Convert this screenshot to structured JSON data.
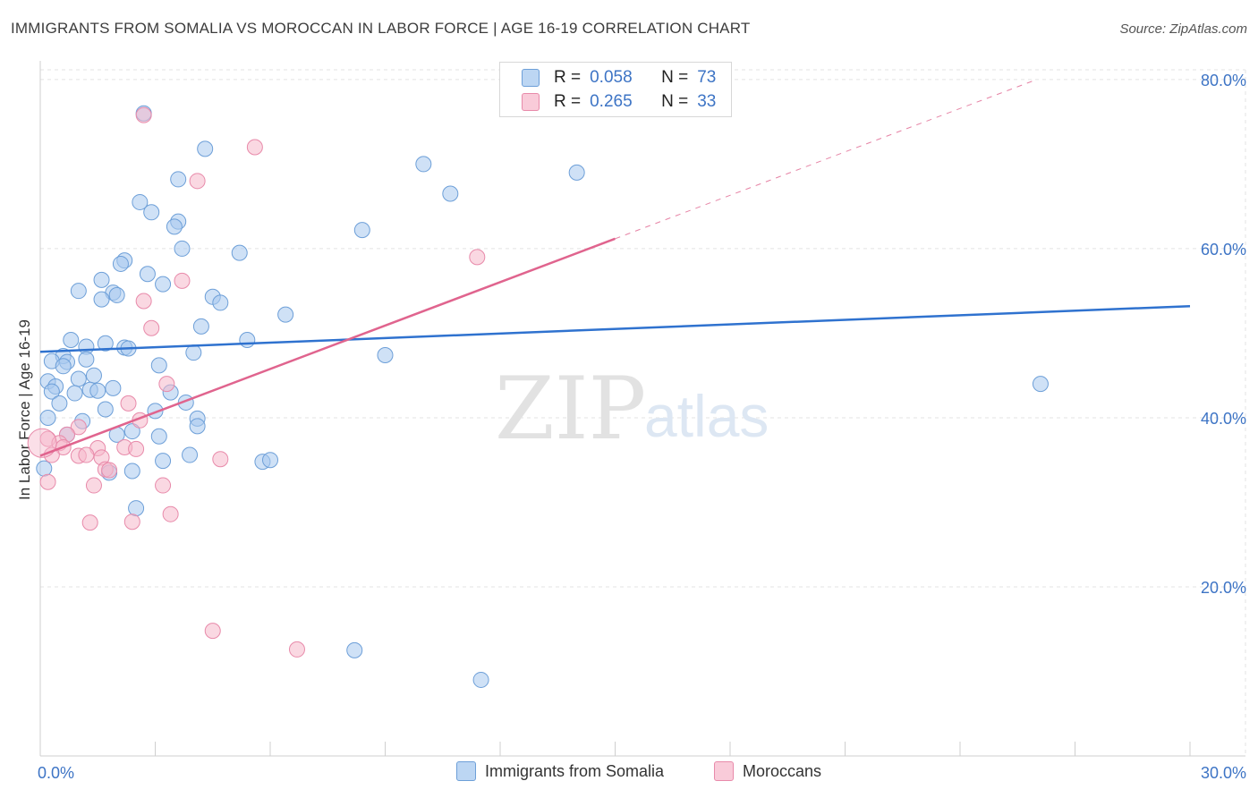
{
  "title": "IMMIGRANTS FROM SOMALIA VS MOROCCAN IN LABOR FORCE | AGE 16-19 CORRELATION CHART",
  "source": "Source: ZipAtlas.com",
  "watermark": {
    "zip": "ZIP",
    "atlas": "atlas"
  },
  "legend": {
    "rows": [
      {
        "r_label": "R =",
        "r_value": "0.058",
        "n_label": "N =",
        "n_value": "73"
      },
      {
        "r_label": "R =",
        "r_value": "0.265",
        "n_label": "N =",
        "n_value": "33"
      }
    ]
  },
  "bottom_legend": {
    "series_a": "Immigrants from Somalia",
    "series_b": "Moroccans"
  },
  "colors": {
    "blue_fill": "#a8c8ee",
    "blue_stroke": "#6d9fd8",
    "blue_line": "#2f72cf",
    "pink_fill": "#f6b8cb",
    "pink_stroke": "#e88aaa",
    "pink_line": "#e0648e",
    "grid": "#e3e3e3",
    "tick_text": "#3d74c5"
  },
  "chart_data": {
    "type": "scatter",
    "title": "IMMIGRANTS FROM SOMALIA VS MOROCCAN IN LABOR FORCE | AGE 16-19 CORRELATION CHART",
    "xlabel": "",
    "ylabel": "In Labor Force | Age 16-19",
    "xlim": [
      0,
      30
    ],
    "ylim": [
      0,
      82
    ],
    "x_tick_labels": [
      {
        "value": 0,
        "label": "0.0%"
      },
      {
        "value": 30,
        "label": "30.0%"
      }
    ],
    "x_minor_ticks": [
      3,
      6,
      9,
      12,
      15,
      18,
      21,
      24,
      27,
      30
    ],
    "y_ticks": [
      {
        "value": 20,
        "label": "20.0%"
      },
      {
        "value": 40,
        "label": "40.0%"
      },
      {
        "value": 60,
        "label": "60.0%"
      },
      {
        "value": 80,
        "label": "80.0%"
      }
    ],
    "grid": true,
    "series": [
      {
        "name": "Immigrants from Somalia",
        "color": "blue",
        "r": 0.058,
        "n": 73,
        "trend": {
          "x0": 0,
          "y0": 47.8,
          "x1": 30,
          "y1": 53.2,
          "dash_from": null
        },
        "points": [
          [
            2.7,
            76.0
          ],
          [
            4.3,
            71.8
          ],
          [
            10.0,
            70.0
          ],
          [
            14.0,
            69.0
          ],
          [
            3.6,
            68.2
          ],
          [
            10.7,
            66.5
          ],
          [
            2.6,
            65.5
          ],
          [
            2.9,
            64.3
          ],
          [
            3.6,
            63.2
          ],
          [
            3.5,
            62.6
          ],
          [
            8.4,
            62.2
          ],
          [
            3.7,
            60.0
          ],
          [
            5.2,
            59.5
          ],
          [
            2.2,
            58.6
          ],
          [
            2.1,
            58.2
          ],
          [
            2.8,
            57.0
          ],
          [
            1.6,
            56.3
          ],
          [
            3.2,
            55.8
          ],
          [
            1.0,
            55.0
          ],
          [
            1.9,
            54.8
          ],
          [
            2.0,
            54.5
          ],
          [
            4.5,
            54.3
          ],
          [
            1.6,
            54.0
          ],
          [
            4.7,
            53.6
          ],
          [
            6.4,
            52.2
          ],
          [
            4.2,
            50.8
          ],
          [
            0.8,
            49.2
          ],
          [
            5.4,
            49.2
          ],
          [
            1.7,
            48.8
          ],
          [
            1.2,
            48.4
          ],
          [
            2.2,
            48.3
          ],
          [
            2.3,
            48.2
          ],
          [
            4.0,
            47.7
          ],
          [
            9.0,
            47.4
          ],
          [
            0.6,
            47.3
          ],
          [
            0.3,
            46.7
          ],
          [
            0.7,
            46.6
          ],
          [
            1.2,
            46.9
          ],
          [
            0.6,
            46.1
          ],
          [
            3.1,
            46.2
          ],
          [
            1.4,
            45.0
          ],
          [
            1.0,
            44.6
          ],
          [
            0.2,
            44.3
          ],
          [
            0.4,
            43.7
          ],
          [
            0.3,
            43.1
          ],
          [
            1.9,
            43.5
          ],
          [
            1.3,
            43.3
          ],
          [
            1.5,
            43.2
          ],
          [
            0.9,
            42.9
          ],
          [
            3.4,
            43.0
          ],
          [
            3.8,
            41.8
          ],
          [
            0.5,
            41.7
          ],
          [
            1.7,
            41.0
          ],
          [
            3.0,
            40.8
          ],
          [
            0.2,
            40.0
          ],
          [
            4.1,
            39.9
          ],
          [
            1.1,
            39.6
          ],
          [
            4.1,
            39.0
          ],
          [
            2.4,
            38.4
          ],
          [
            0.7,
            38.0
          ],
          [
            2.0,
            38.0
          ],
          [
            3.1,
            37.8
          ],
          [
            3.9,
            35.6
          ],
          [
            3.2,
            34.9
          ],
          [
            5.8,
            34.8
          ],
          [
            0.1,
            34.0
          ],
          [
            2.4,
            33.7
          ],
          [
            2.5,
            29.3
          ],
          [
            8.2,
            12.5
          ],
          [
            11.5,
            9.0
          ],
          [
            26.1,
            44.0
          ],
          [
            6.0,
            35.0
          ],
          [
            1.8,
            33.5
          ]
        ]
      },
      {
        "name": "Moroccans",
        "color": "pink",
        "r": 0.265,
        "n": 33,
        "trend": {
          "x0": 0,
          "y0": 35.5,
          "x1": 26.0,
          "y1": 80.0,
          "dash_from": 15.0
        },
        "points": [
          [
            2.7,
            75.8
          ],
          [
            5.6,
            72.0
          ],
          [
            4.1,
            68.0
          ],
          [
            11.4,
            59.0
          ],
          [
            3.7,
            56.2
          ],
          [
            2.7,
            53.8
          ],
          [
            2.9,
            50.6
          ],
          [
            3.3,
            44.0
          ],
          [
            2.3,
            41.7
          ],
          [
            1.0,
            38.9
          ],
          [
            2.6,
            39.7
          ],
          [
            0.7,
            38.0
          ],
          [
            0.2,
            37.5
          ],
          [
            0.5,
            37.0
          ],
          [
            0.6,
            36.5
          ],
          [
            2.2,
            36.5
          ],
          [
            1.5,
            36.4
          ],
          [
            2.5,
            36.3
          ],
          [
            1.0,
            35.5
          ],
          [
            1.2,
            35.6
          ],
          [
            0.3,
            35.6
          ],
          [
            1.6,
            35.3
          ],
          [
            4.7,
            35.1
          ],
          [
            1.7,
            33.9
          ],
          [
            1.8,
            33.8
          ],
          [
            0.2,
            32.4
          ],
          [
            1.4,
            32.0
          ],
          [
            3.2,
            32.0
          ],
          [
            3.4,
            28.6
          ],
          [
            1.3,
            27.6
          ],
          [
            2.4,
            27.7
          ],
          [
            4.5,
            14.8
          ],
          [
            6.7,
            12.6
          ]
        ]
      }
    ]
  }
}
